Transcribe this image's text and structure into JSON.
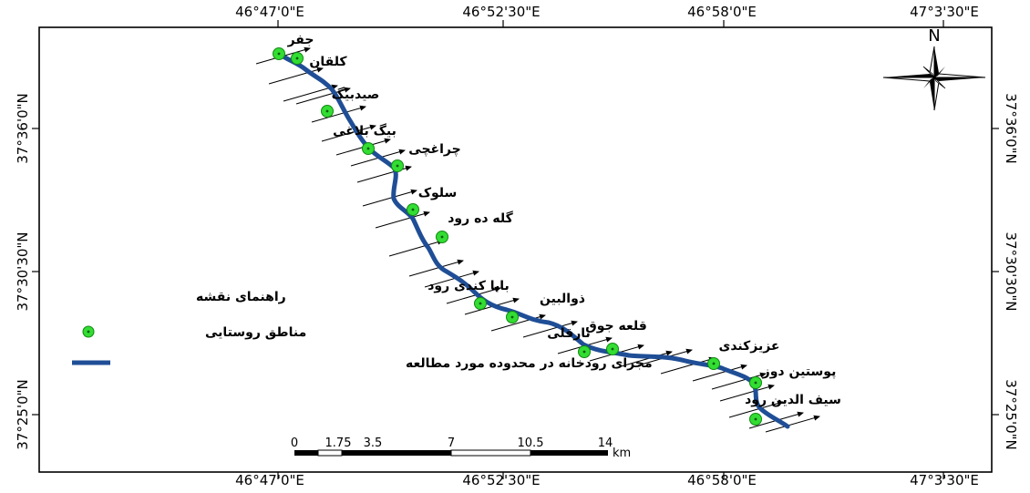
{
  "axes": {
    "top_longitudes": [
      "46°47'0\"E",
      "46°52'30\"E",
      "46°58'0\"E",
      "47°3'30\"E"
    ],
    "bottom_longitudes": [
      "46°47'0\"E",
      "46°52'30\"E",
      "46°58'0\"E",
      "47°3'30\"E"
    ],
    "left_latitudes": [
      "37°36'0\"N",
      "37°30'30\"N",
      "37°25'0\"N"
    ],
    "right_latitudes": [
      "37°36'0\"N",
      "37°30'30\"N",
      "37°25'0\"N"
    ]
  },
  "north_arrow": {
    "label": "N"
  },
  "villages": [
    {
      "name": "جفر"
    },
    {
      "name": "کلقان"
    },
    {
      "name": "صیدبیگ"
    },
    {
      "name": "بیگ بلاغی"
    },
    {
      "name": "چراغچی"
    },
    {
      "name": "سلوک"
    },
    {
      "name": "گله ده رود"
    },
    {
      "name": "بابا کندی رود"
    },
    {
      "name": "ذوالبین"
    },
    {
      "name": "تارقلی"
    },
    {
      "name": "قلعه جوق"
    },
    {
      "name": "عزیزکندی"
    },
    {
      "name": "پوستین دوز"
    },
    {
      "name": "سیف الدین رود"
    }
  ],
  "legend": {
    "title": "راهنمای نقشه",
    "villages_label": "مناطق روستایی",
    "river_label": "مجرای رودخانه در محدوده مورد مطالعه"
  },
  "scale_bar": {
    "ticks": [
      "0",
      "1.75",
      "3.5",
      "7",
      "10.5",
      "14"
    ],
    "unit": "km"
  },
  "colors": {
    "river": "#1f4e96",
    "village_fill": "#33dd33",
    "village_stroke": "#118811",
    "frame": "#000000",
    "background": "#ffffff"
  }
}
